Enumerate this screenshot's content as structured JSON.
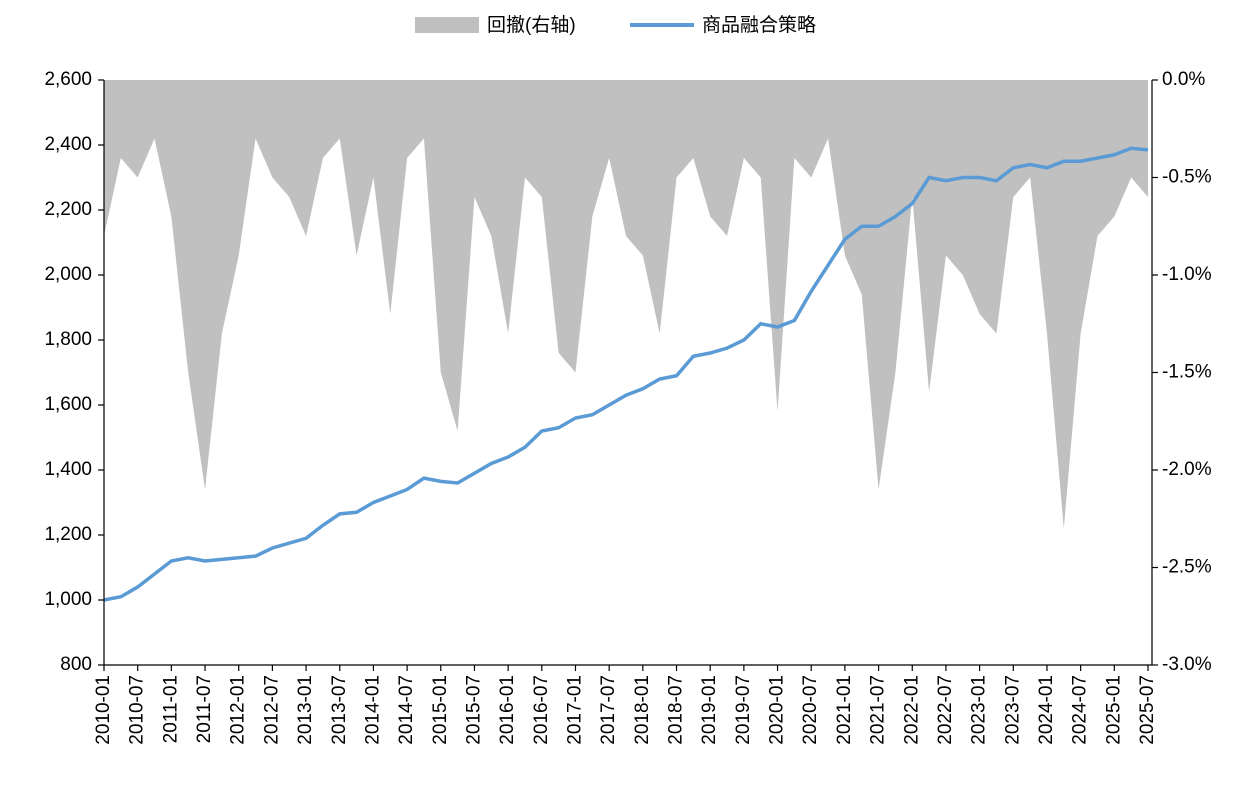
{
  "chart_data": {
    "type": "line",
    "x": [
      "2010-01",
      "2010-04",
      "2010-07",
      "2010-10",
      "2011-01",
      "2011-04",
      "2011-07",
      "2011-10",
      "2012-01",
      "2012-04",
      "2012-07",
      "2012-10",
      "2013-01",
      "2013-04",
      "2013-07",
      "2013-10",
      "2014-01",
      "2014-04",
      "2014-07",
      "2014-10",
      "2015-01",
      "2015-04",
      "2015-07",
      "2015-10",
      "2016-01",
      "2016-04",
      "2016-07",
      "2016-10",
      "2017-01",
      "2017-04",
      "2017-07",
      "2017-10",
      "2018-01",
      "2018-04",
      "2018-07",
      "2018-10",
      "2019-01",
      "2019-04",
      "2019-07",
      "2019-10",
      "2020-01",
      "2020-04",
      "2020-07",
      "2020-10",
      "2021-01",
      "2021-04",
      "2021-07",
      "2021-10",
      "2022-01",
      "2022-04",
      "2022-07",
      "2022-10",
      "2023-01",
      "2023-04",
      "2023-07",
      "2023-10",
      "2024-01",
      "2024-04",
      "2024-07",
      "2024-10",
      "2025-01",
      "2025-04",
      "2025-07"
    ],
    "xticks": [
      "2010-01",
      "2010-07",
      "2011-01",
      "2011-07",
      "2012-01",
      "2012-07",
      "2013-01",
      "2013-07",
      "2014-01",
      "2014-07",
      "2015-01",
      "2015-07",
      "2016-01",
      "2016-07",
      "2017-01",
      "2017-07",
      "2018-01",
      "2018-07",
      "2019-01",
      "2019-07",
      "2020-01",
      "2020-07",
      "2021-01",
      "2021-07",
      "2022-01",
      "2022-07",
      "2023-01",
      "2023-07",
      "2024-01",
      "2024-07",
      "2025-01",
      "2025-07"
    ],
    "series": [
      {
        "name": "回撤(右轴)",
        "type": "area",
        "axis": "y2",
        "color": "#c0c0c0",
        "values": [
          -0.8,
          -0.4,
          -0.5,
          -0.3,
          -0.7,
          -1.5,
          -2.1,
          -1.3,
          -0.9,
          -0.3,
          -0.5,
          -0.6,
          -0.8,
          -0.4,
          -0.3,
          -0.9,
          -0.5,
          -1.2,
          -0.4,
          -0.3,
          -1.5,
          -1.8,
          -0.6,
          -0.8,
          -1.3,
          -0.5,
          -0.6,
          -1.4,
          -1.5,
          -0.7,
          -0.4,
          -0.8,
          -0.9,
          -1.3,
          -0.5,
          -0.4,
          -0.7,
          -0.8,
          -0.4,
          -0.5,
          -1.7,
          -0.4,
          -0.5,
          -0.3,
          -0.9,
          -1.1,
          -2.1,
          -1.5,
          -0.6,
          -1.6,
          -0.9,
          -1.0,
          -1.2,
          -1.3,
          -0.6,
          -0.5,
          -1.3,
          -2.3,
          -1.3,
          -0.8,
          -0.7,
          -0.5,
          -0.6
        ]
      },
      {
        "name": "商品融合策略",
        "type": "line",
        "color": "#5b9bd5",
        "values": [
          1000,
          1010,
          1040,
          1080,
          1120,
          1130,
          1120,
          1125,
          1130,
          1135,
          1160,
          1175,
          1190,
          1230,
          1265,
          1270,
          1300,
          1320,
          1340,
          1375,
          1365,
          1360,
          1390,
          1420,
          1440,
          1470,
          1520,
          1530,
          1560,
          1570,
          1600,
          1630,
          1650,
          1680,
          1690,
          1750,
          1760,
          1775,
          1800,
          1850,
          1840,
          1860,
          1950,
          2030,
          2110,
          2150,
          2150,
          2180,
          2220,
          2300,
          2290,
          2300,
          2300,
          2290,
          2330,
          2340,
          2330,
          2350,
          2350,
          2360,
          2370,
          2390,
          2385
        ]
      }
    ],
    "ylim": [
      800,
      2600
    ],
    "yticks": [
      {
        "value": 800,
        "label": "800"
      },
      {
        "value": 1000,
        "label": "1,000"
      },
      {
        "value": 1200,
        "label": "1,200"
      },
      {
        "value": 1400,
        "label": "1,400"
      },
      {
        "value": 1600,
        "label": "1,600"
      },
      {
        "value": 1800,
        "label": "1,800"
      },
      {
        "value": 2000,
        "label": "2,000"
      },
      {
        "value": 2200,
        "label": "2,200"
      },
      {
        "value": 2400,
        "label": "2,400"
      },
      {
        "value": 2600,
        "label": "2,600"
      }
    ],
    "y2lim": [
      -3.0,
      0.0
    ],
    "y2ticks": [
      {
        "value": -3.0,
        "label": "-3.0%"
      },
      {
        "value": -2.5,
        "label": "-2.5%"
      },
      {
        "value": -2.0,
        "label": "-2.0%"
      },
      {
        "value": -1.5,
        "label": "-1.5%"
      },
      {
        "value": -1.0,
        "label": "-1.0%"
      },
      {
        "value": -0.5,
        "label": "-0.5%"
      },
      {
        "value": 0.0,
        "label": "0.0%"
      }
    ],
    "legend": "top"
  }
}
